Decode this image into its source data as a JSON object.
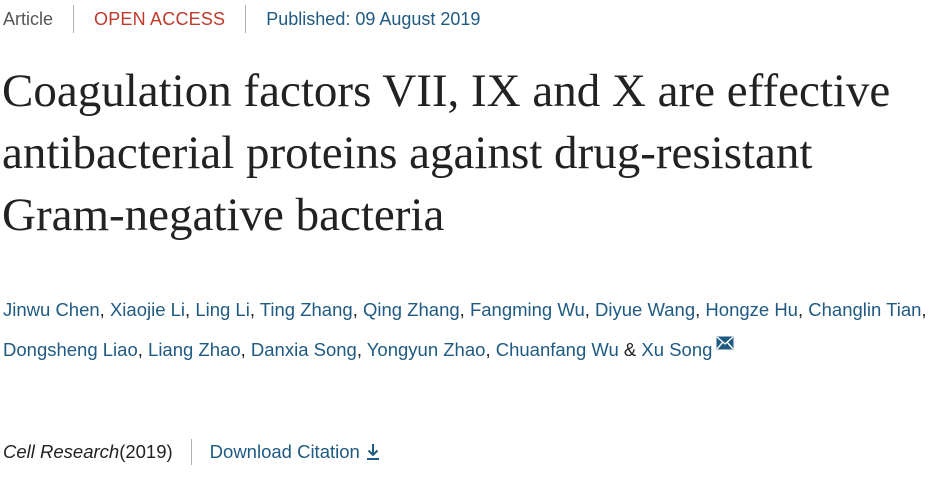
{
  "meta": {
    "article_type": "Article",
    "access": "OPEN ACCESS",
    "published": "Published: 09 August 2019"
  },
  "title": "Coagulation factors VII, IX and X are effective antibacterial proteins against drug-resistant Gram-negative bacteria",
  "authors": [
    "Jinwu Chen",
    "Xiaojie Li",
    "Ling Li",
    "Ting Zhang",
    "Qing Zhang",
    "Fangming Wu",
    "Diyue Wang",
    "Hongze Hu",
    "Changlin Tian",
    "Dongsheng Liao",
    "Liang Zhao",
    "Danxia Song",
    "Yongyun Zhao",
    "Chuanfang Wu",
    "Xu Song"
  ],
  "author_separator": ", ",
  "author_last_join": " & ",
  "citation": {
    "journal": "Cell Research",
    "year": " (2019)",
    "download_label": "Download Citation"
  },
  "icons": {
    "mail": "mail-icon",
    "download": "download-icon"
  },
  "colors": {
    "link": "#1f5a82",
    "open_access": "#c0392b",
    "text": "#222222",
    "muted": "#555555"
  }
}
